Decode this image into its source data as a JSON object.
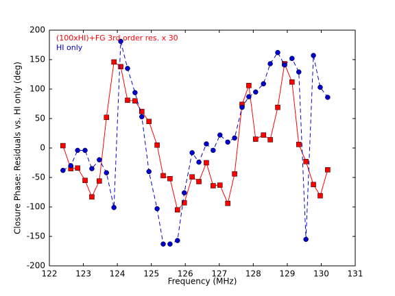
{
  "chart_data": {
    "type": "line",
    "xlabel": "Frequency (MHz)",
    "ylabel": "Closure Phase: Residuals vs. HI only (deg)",
    "x": [
      122.4,
      122.63,
      122.83,
      123.05,
      123.25,
      123.47,
      123.68,
      123.9,
      124.1,
      124.3,
      124.52,
      124.72,
      124.93,
      125.17,
      125.35,
      125.55,
      125.77,
      125.97,
      126.2,
      126.4,
      126.62,
      126.82,
      127.02,
      127.25,
      127.45,
      127.67,
      127.87,
      128.07,
      128.3,
      128.5,
      128.72,
      128.92,
      129.14,
      129.34,
      129.55,
      129.77,
      129.97,
      130.19
    ],
    "series": [
      {
        "name": "(100xHI)+FG 3rd order res. x 30",
        "color": "#ff0000",
        "linestyle": "solid",
        "marker": "square",
        "values": [
          4,
          -35,
          -34,
          -55,
          -83,
          -56,
          52,
          146,
          138,
          81,
          80,
          62,
          45,
          5,
          -47,
          -52,
          -105,
          -93,
          -49,
          -57,
          -25,
          -64,
          -63,
          -94,
          -44,
          74,
          106,
          15,
          22,
          14,
          69,
          143,
          112,
          6,
          -23,
          -62,
          -81,
          -37
        ]
      },
      {
        "name": "HI only",
        "color": "#0000cc",
        "linestyle": "dashed",
        "marker": "circle",
        "values": [
          -38,
          -30,
          -4,
          -4,
          -35,
          -20,
          -42,
          -101,
          181,
          135,
          94,
          53,
          -40,
          -103,
          -163,
          -163,
          -157,
          -76,
          -8,
          -24,
          7,
          -4,
          22,
          10,
          17,
          69,
          87,
          95,
          109,
          143,
          162,
          141,
          152,
          129,
          -155,
          157,
          103,
          86
        ]
      }
    ],
    "xlim": [
      122,
      131
    ],
    "xticks": [
      122,
      123,
      124,
      125,
      126,
      127,
      128,
      129,
      130,
      131
    ],
    "ylim": [
      -200,
      200
    ],
    "yticks": [
      -200,
      -150,
      -100,
      -50,
      0,
      50,
      100,
      150,
      200
    ],
    "legend_loc": "upper left",
    "grid": false
  }
}
